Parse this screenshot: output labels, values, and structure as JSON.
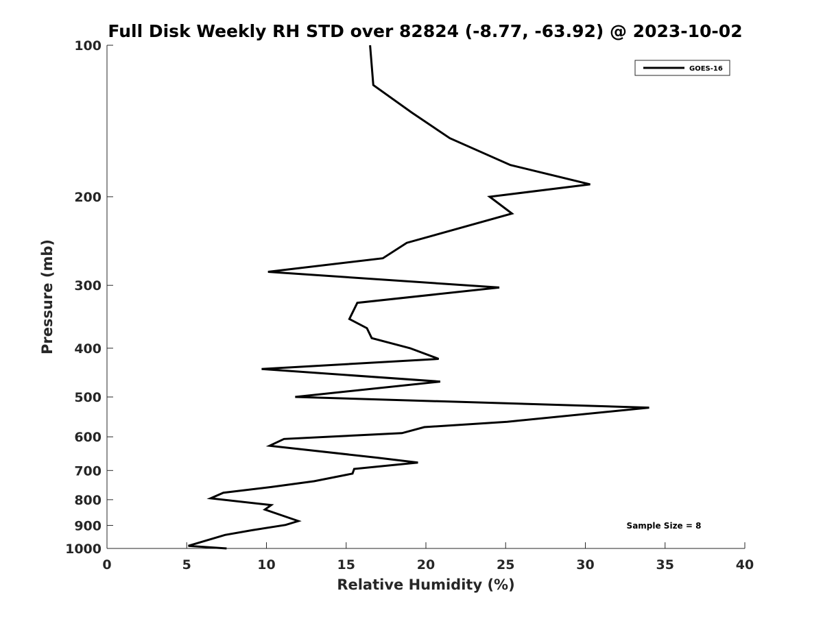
{
  "chart_data": {
    "type": "line",
    "title": "Full Disk Weekly RH STD over 82824 (-8.77, -63.92) @ 2023-10-02",
    "xlabel": "Relative Humidity (%)",
    "ylabel": "Pressure (mb)",
    "xlim": [
      0,
      40
    ],
    "ylim": [
      100,
      1000
    ],
    "y_scale": "log",
    "y_reversed": true,
    "x_ticks": [
      0,
      5,
      10,
      15,
      20,
      25,
      30,
      35,
      40
    ],
    "y_ticks": [
      100,
      200,
      300,
      400,
      500,
      600,
      700,
      800,
      900,
      1000
    ],
    "grid": false,
    "legend_position": "top-right",
    "line_color": "#000000",
    "annotation": "Sample Size = 8",
    "series": [
      {
        "name": "GOES-16",
        "x": [
          16.5,
          16.7,
          19.1,
          21.5,
          25.3,
          30.3,
          24.0,
          25.4,
          18.8,
          17.3,
          10.1,
          24.6,
          15.7,
          15.2,
          16.3,
          16.6,
          19.0,
          20.8,
          9.7,
          20.9,
          11.8,
          34.0,
          25.1,
          19.9,
          18.5,
          11.1,
          10.2,
          16.9,
          19.5,
          15.5,
          15.4,
          13.0,
          10.3,
          7.3,
          6.5,
          10.3,
          9.9,
          12.0,
          11.2,
          9.1,
          7.4,
          5.1,
          7.5
        ],
        "y": [
          100,
          120,
          136,
          153,
          173,
          189,
          200,
          216,
          247,
          265,
          282,
          303,
          325,
          350,
          365,
          382,
          400,
          420,
          440,
          466,
          500,
          525,
          560,
          574,
          590,
          606,
          625,
          660,
          675,
          695,
          710,
          735,
          755,
          775,
          795,
          820,
          837,
          882,
          898,
          920,
          940,
          988,
          1010
        ]
      }
    ]
  }
}
